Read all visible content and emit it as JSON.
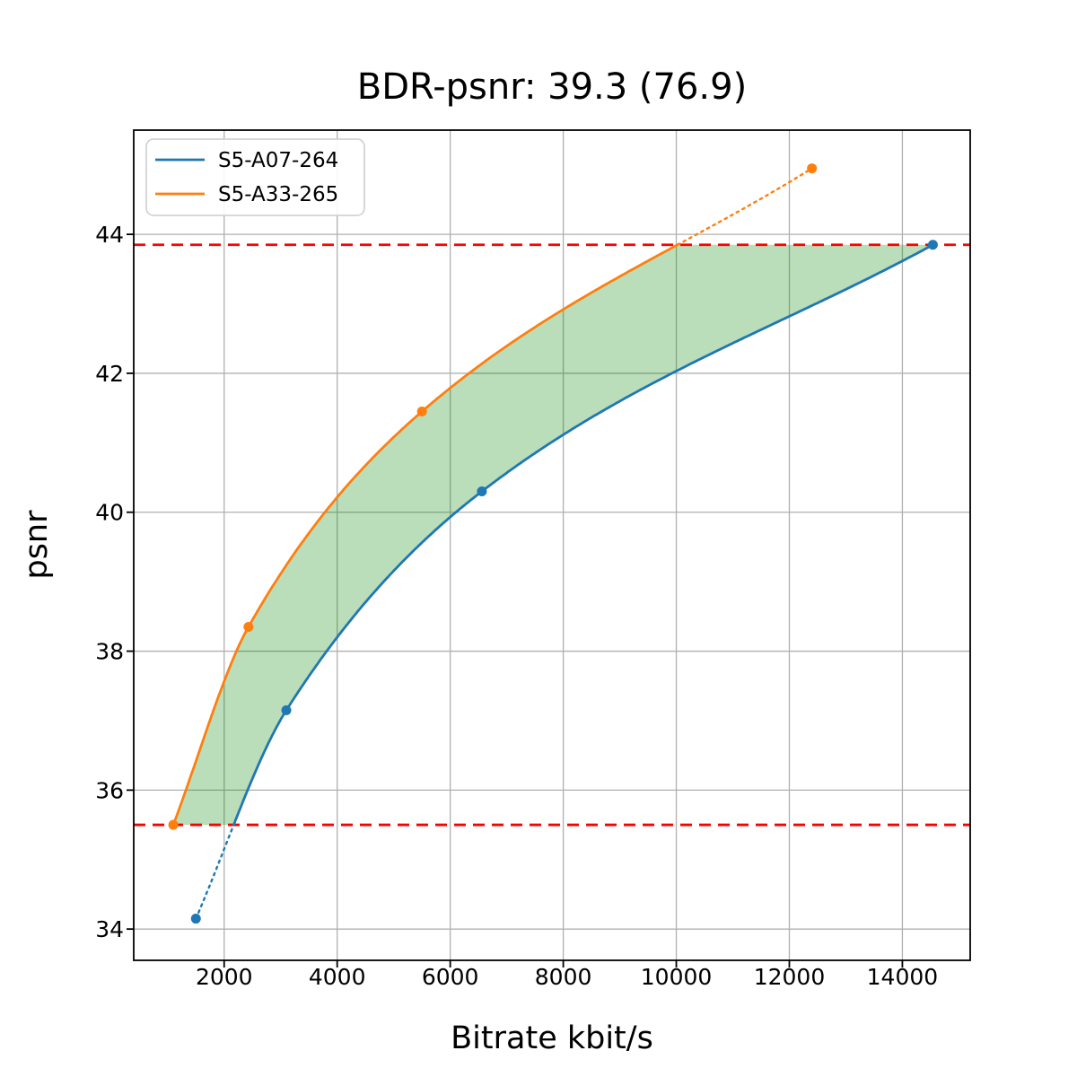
{
  "chart_data": {
    "type": "line",
    "title": "BDR-psnr: 39.3 (76.9)",
    "xlabel": "Bitrate kbit/s",
    "ylabel": "psnr",
    "xlim": [
      400,
      15200
    ],
    "ylim": [
      33.55,
      45.5
    ],
    "xticks": [
      2000,
      4000,
      6000,
      8000,
      10000,
      12000,
      14000
    ],
    "yticks": [
      34,
      36,
      38,
      40,
      42,
      44
    ],
    "grid": true,
    "grid_color": "#b0b0b0",
    "legend_position": "upper left",
    "series": [
      {
        "name": "S5-A07-264",
        "color": "#1f77b4",
        "points": [
          [
            1500,
            34.15
          ],
          [
            3100,
            37.15
          ],
          [
            6560,
            40.3
          ],
          [
            14540,
            43.85
          ]
        ]
      },
      {
        "name": "S5-A33-265",
        "color": "#ff7f0e",
        "points": [
          [
            1100,
            35.5
          ],
          [
            2430,
            38.35
          ],
          [
            5500,
            41.45
          ],
          [
            12400,
            44.95
          ]
        ]
      }
    ],
    "reference_lines": [
      {
        "name": "bd-lower-bound",
        "y": 35.5,
        "color": "#ff0000",
        "style": "dashed"
      },
      {
        "name": "bd-upper-bound",
        "y": 43.85,
        "color": "#ff0000",
        "style": "dashed"
      }
    ],
    "bd_region": {
      "fill_color": "#008000",
      "fill_opacity": 0.27,
      "psnr_low": 35.5,
      "psnr_high": 43.85
    },
    "extrapolation_style": "dotted",
    "bdr_psnr": "39.3",
    "bdr_rate": "76.9"
  }
}
